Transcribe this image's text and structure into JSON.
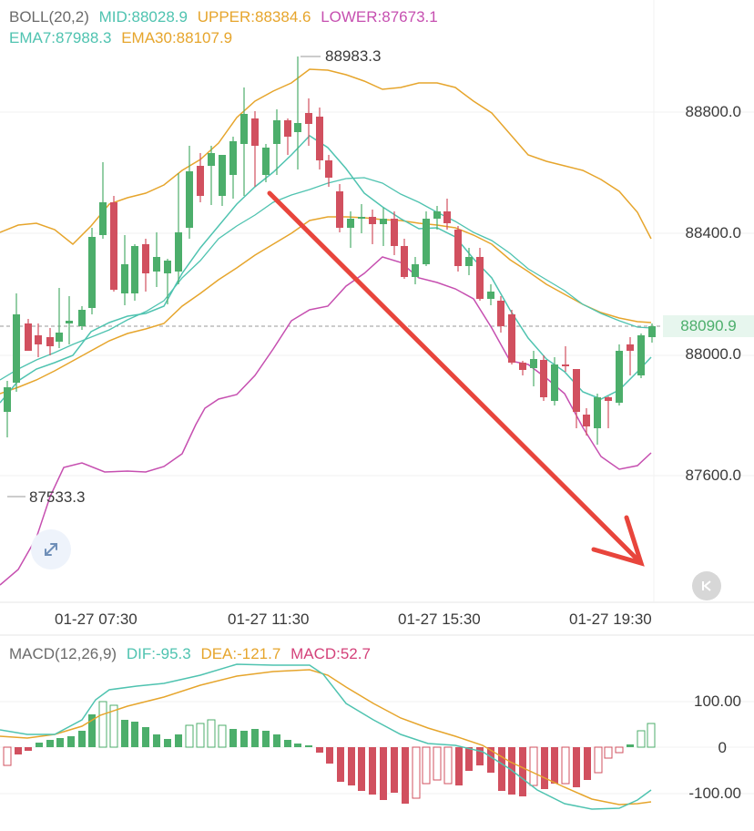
{
  "legend": {
    "boll_label": "BOLL(20,2)",
    "mid": "MID:88028.9",
    "upper": "UPPER:88384.6",
    "lower": "LOWER:87673.1",
    "ema7": "EMA7:87988.3",
    "ema30": "EMA30:88107.9"
  },
  "macd_legend": {
    "label": "MACD(12,26,9)",
    "dif": "DIF:-95.3",
    "dea": "DEA:-121.7",
    "macd": "MACD:52.7"
  },
  "price_axis": [
    "88800.0",
    "88400.0",
    "88000.0",
    "87600.0"
  ],
  "current_price": "88090.9",
  "high_label": "88983.3",
  "low_label": "87533.3",
  "time_axis": [
    "01-27 07:30",
    "01-27 11:30",
    "01-27 15:30",
    "01-27 19:30"
  ],
  "macd_axis": [
    "100.00",
    "0",
    "-100.00"
  ],
  "colors": {
    "up": "#4cae6b",
    "down": "#d1505f",
    "mid": "#4fc3b0",
    "upper": "#e6a52c",
    "lower": "#c64fb0",
    "arrow": "#e8453c"
  },
  "icons": {
    "expand": "expand-icon",
    "back": "chevron-left-icon"
  }
}
